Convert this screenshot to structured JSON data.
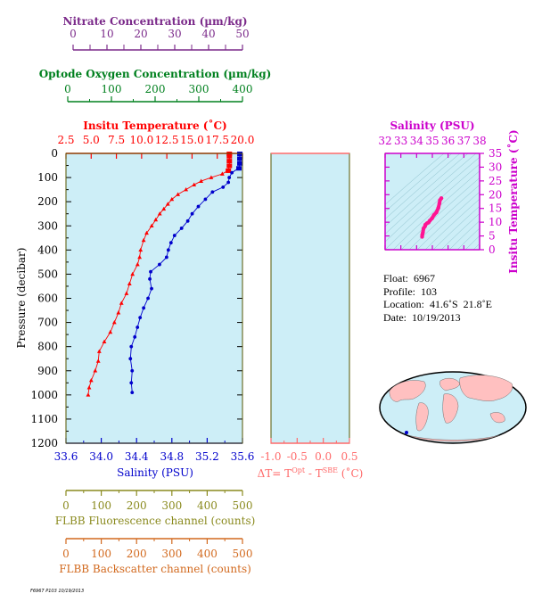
{
  "colors": {
    "nitrate": "#7b2a8a",
    "oxygen": "#00801e",
    "temperature": "#ff0000",
    "salinity": "#0000cc",
    "delta": "#ff6a6a",
    "fluorescence": "#8a8a1e",
    "backscatter": "#d2691e",
    "panel_bg": "#cdeef7",
    "ts_salinity": "#cc00cc",
    "ts_trace": "#ff1493",
    "frame": "#555500"
  },
  "axes": {
    "nitrate": {
      "label": "Nitrate Concentration (µm/kg)",
      "range": [
        0,
        50
      ],
      "ticks": [
        "0",
        "10",
        "20",
        "30",
        "40",
        "50"
      ]
    },
    "oxygen": {
      "label": "Optode Oxygen Concentration (µm/kg)",
      "range": [
        0,
        400
      ],
      "ticks": [
        "0",
        "100",
        "200",
        "300",
        "400"
      ]
    },
    "temperature": {
      "label": "Insitu Temperature (˚C)",
      "range": [
        2.5,
        20.0
      ],
      "ticks": [
        "2.5",
        "5.0",
        "7.5",
        "10.0",
        "12.5",
        "15.0",
        "17.5",
        "20.0"
      ]
    },
    "pressure": {
      "label": "Pressure (decibar)",
      "range": [
        0,
        1200
      ],
      "ticks": [
        "0",
        "100",
        "200",
        "300",
        "400",
        "500",
        "600",
        "700",
        "800",
        "900",
        "1000",
        "1100",
        "1200"
      ]
    },
    "salinity": {
      "label": "Salinity (PSU)",
      "range": [
        33.6,
        35.6
      ],
      "ticks": [
        "33.6",
        "34.0",
        "34.4",
        "34.8",
        "35.2",
        "35.6"
      ]
    },
    "delta_t": {
      "label": "ΔT= T",
      "label_sup1": "Opt",
      "label_mid": " - T",
      "label_sup2": "SBE",
      "label_end": " (˚C)",
      "range": [
        -1.0,
        0.5
      ],
      "ticks": [
        "-1.0",
        "-0.5",
        "0.0",
        "0.5"
      ]
    },
    "fluorescence": {
      "label": "FLBB Fluorescence channel (counts)",
      "range": [
        0,
        500
      ],
      "ticks": [
        "0",
        "100",
        "200",
        "300",
        "400",
        "500"
      ]
    },
    "backscatter": {
      "label": "FLBB Backscatter channel (counts)",
      "range": [
        0,
        500
      ],
      "ticks": [
        "0",
        "100",
        "200",
        "300",
        "400",
        "500"
      ]
    },
    "ts_salinity": {
      "label": "Salinity (PSU)",
      "range": [
        32,
        38
      ],
      "ticks": [
        "32",
        "33",
        "34",
        "35",
        "36",
        "37",
        "38"
      ]
    },
    "ts_temperature": {
      "label": "Insitu Temperature (˚C)",
      "range": [
        0,
        35
      ],
      "ticks": [
        "0",
        "5",
        "10",
        "15",
        "20",
        "25",
        "30",
        "35"
      ]
    }
  },
  "chart_data": [
    {
      "type": "line",
      "name": "temperature_profile",
      "x_label": "Insitu Temperature (˚C)",
      "y_label": "Pressure (decibar)",
      "ylim": [
        1200,
        0
      ],
      "xlim": [
        2.5,
        20.0
      ],
      "points": [
        {
          "p": 0,
          "t": 18.7
        },
        {
          "p": 10,
          "t": 18.7
        },
        {
          "p": 30,
          "t": 18.7
        },
        {
          "p": 50,
          "t": 18.7
        },
        {
          "p": 70,
          "t": 18.6
        },
        {
          "p": 85,
          "t": 18.0
        },
        {
          "p": 100,
          "t": 16.9
        },
        {
          "p": 115,
          "t": 15.9
        },
        {
          "p": 130,
          "t": 15.2
        },
        {
          "p": 150,
          "t": 14.4
        },
        {
          "p": 170,
          "t": 13.6
        },
        {
          "p": 190,
          "t": 13.0
        },
        {
          "p": 210,
          "t": 12.6
        },
        {
          "p": 230,
          "t": 12.2
        },
        {
          "p": 250,
          "t": 11.8
        },
        {
          "p": 275,
          "t": 11.4
        },
        {
          "p": 300,
          "t": 11.0
        },
        {
          "p": 330,
          "t": 10.5
        },
        {
          "p": 360,
          "t": 10.2
        },
        {
          "p": 400,
          "t": 9.9
        },
        {
          "p": 430,
          "t": 9.8
        },
        {
          "p": 460,
          "t": 9.6
        },
        {
          "p": 500,
          "t": 9.1
        },
        {
          "p": 540,
          "t": 8.8
        },
        {
          "p": 580,
          "t": 8.5
        },
        {
          "p": 620,
          "t": 8.0
        },
        {
          "p": 660,
          "t": 7.7
        },
        {
          "p": 700,
          "t": 7.3
        },
        {
          "p": 740,
          "t": 6.9
        },
        {
          "p": 780,
          "t": 6.3
        },
        {
          "p": 820,
          "t": 5.8
        },
        {
          "p": 860,
          "t": 5.7
        },
        {
          "p": 900,
          "t": 5.4
        },
        {
          "p": 940,
          "t": 5.0
        },
        {
          "p": 970,
          "t": 4.8
        },
        {
          "p": 1000,
          "t": 4.7
        }
      ]
    },
    {
      "type": "line",
      "name": "salinity_profile",
      "x_label": "Salinity (PSU)",
      "y_label": "Pressure (decibar)",
      "ylim": [
        1200,
        0
      ],
      "xlim": [
        33.6,
        35.6
      ],
      "points": [
        {
          "p": 0,
          "s": 35.57
        },
        {
          "p": 20,
          "s": 35.57
        },
        {
          "p": 40,
          "s": 35.57
        },
        {
          "p": 60,
          "s": 35.56
        },
        {
          "p": 80,
          "s": 35.48
        },
        {
          "p": 100,
          "s": 35.45
        },
        {
          "p": 120,
          "s": 35.44
        },
        {
          "p": 140,
          "s": 35.38
        },
        {
          "p": 160,
          "s": 35.26
        },
        {
          "p": 190,
          "s": 35.18
        },
        {
          "p": 220,
          "s": 35.1
        },
        {
          "p": 250,
          "s": 35.03
        },
        {
          "p": 280,
          "s": 34.98
        },
        {
          "p": 310,
          "s": 34.91
        },
        {
          "p": 340,
          "s": 34.83
        },
        {
          "p": 370,
          "s": 34.79
        },
        {
          "p": 400,
          "s": 34.76
        },
        {
          "p": 430,
          "s": 34.74
        },
        {
          "p": 460,
          "s": 34.66
        },
        {
          "p": 490,
          "s": 34.56
        },
        {
          "p": 520,
          "s": 34.55
        },
        {
          "p": 560,
          "s": 34.57
        },
        {
          "p": 600,
          "s": 34.53
        },
        {
          "p": 640,
          "s": 34.48
        },
        {
          "p": 680,
          "s": 34.44
        },
        {
          "p": 720,
          "s": 34.41
        },
        {
          "p": 760,
          "s": 34.38
        },
        {
          "p": 800,
          "s": 34.34
        },
        {
          "p": 850,
          "s": 34.33
        },
        {
          "p": 900,
          "s": 34.35
        },
        {
          "p": 950,
          "s": 34.34
        },
        {
          "p": 990,
          "s": 34.35
        }
      ]
    },
    {
      "type": "scatter",
      "name": "ts_diagram",
      "x_label": "Salinity (PSU)",
      "y_label": "Insitu Temperature (˚C)",
      "xlim": [
        32,
        38
      ],
      "ylim": [
        0,
        35
      ],
      "points": [
        {
          "s": 34.35,
          "t": 4.7
        },
        {
          "s": 34.36,
          "t": 5.4
        },
        {
          "s": 34.4,
          "t": 6.3
        },
        {
          "s": 34.44,
          "t": 7.7
        },
        {
          "s": 34.53,
          "t": 8.5
        },
        {
          "s": 34.56,
          "t": 9.1
        },
        {
          "s": 34.66,
          "t": 9.6
        },
        {
          "s": 34.76,
          "t": 9.9
        },
        {
          "s": 34.83,
          "t": 10.5
        },
        {
          "s": 34.98,
          "t": 11.4
        },
        {
          "s": 35.1,
          "t": 12.6
        },
        {
          "s": 35.26,
          "t": 13.6
        },
        {
          "s": 35.38,
          "t": 15.2
        },
        {
          "s": 35.45,
          "t": 16.9
        },
        {
          "s": 35.48,
          "t": 18.0
        },
        {
          "s": 35.57,
          "t": 18.7
        }
      ]
    }
  ],
  "float_info": {
    "float": "Float:  6967",
    "profile": "Profile:  103",
    "location": "Location:  41.6˚S  21.8˚E",
    "date": "Date:  10/19/2013"
  },
  "footer_text": "F6967 P103 10/19/2013"
}
